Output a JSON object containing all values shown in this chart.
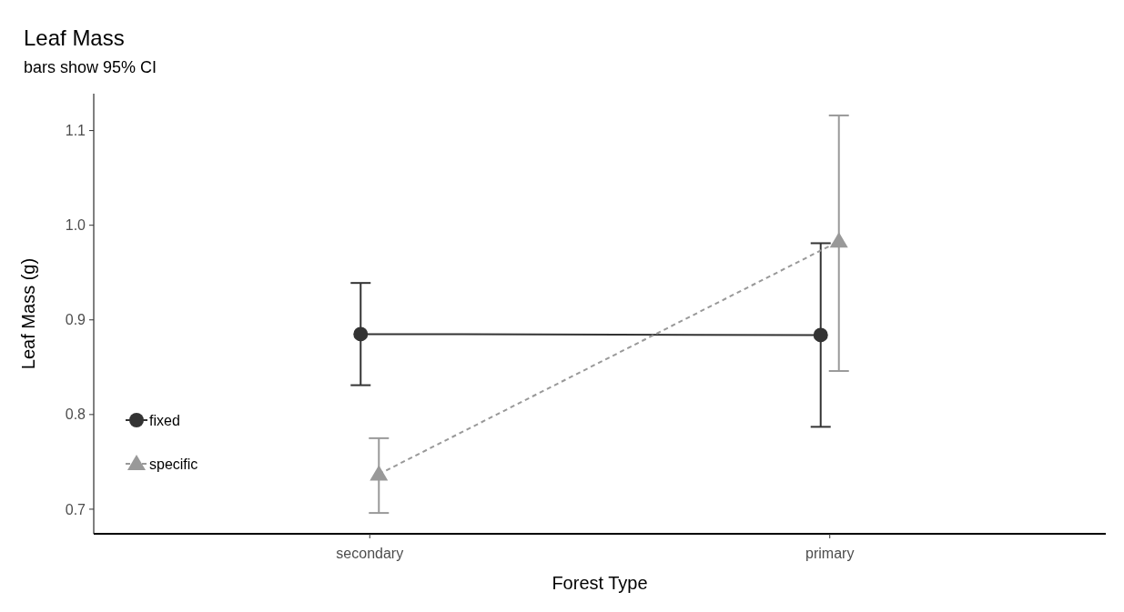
{
  "chart_data": {
    "type": "line",
    "title": "Leaf Mass",
    "subtitle": "bars show 95% CI",
    "xlabel": "Forest Type",
    "ylabel": "Leaf Mass (g)",
    "categories": [
      "secondary",
      "primary"
    ],
    "series": [
      {
        "name": "fixed",
        "color": "#333333",
        "values": [
          0.885,
          0.884
        ],
        "errors": [
          [
            0.831,
            0.939
          ],
          [
            0.787,
            0.981
          ]
        ],
        "marker": "circle",
        "line_style": "solid"
      },
      {
        "name": "specific",
        "color": "#999999",
        "values": [
          0.737,
          0.983
        ],
        "errors": [
          [
            0.696,
            0.775
          ],
          [
            0.846,
            1.116
          ]
        ],
        "marker": "triangle",
        "line_style": "dashed"
      }
    ],
    "ylim": [
      0.674,
      1.139
    ],
    "yticks": [
      0.7,
      0.8,
      0.9,
      {
        "value": 1.0,
        "label": "1.0"
      },
      1.1
    ],
    "grid": false,
    "legend": "bottom left"
  }
}
